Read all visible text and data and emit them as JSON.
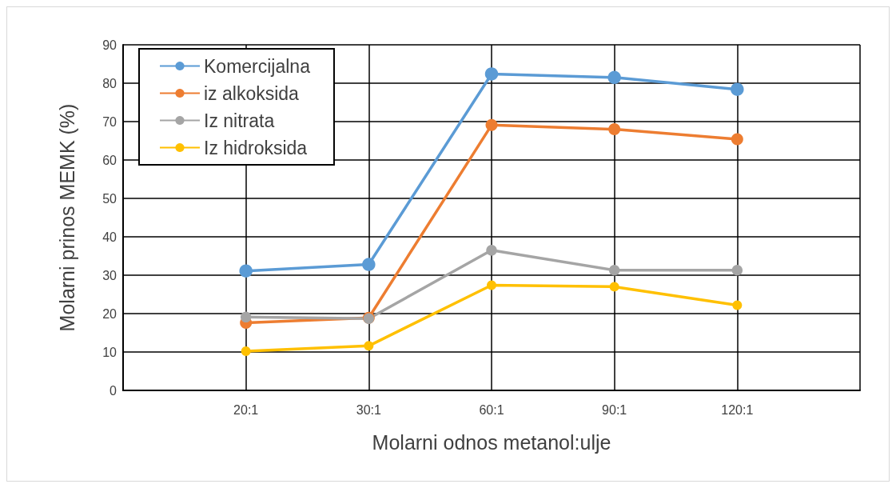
{
  "chart_data": {
    "type": "line",
    "xlabel": "Molarni odnos metanol:ulje",
    "ylabel": "Molarni prinos MEMK (%)",
    "categories": [
      null,
      "20:1",
      "30:1",
      "60:1",
      "90:1",
      "120:1",
      null
    ],
    "series": [
      {
        "name": "Komercijalna",
        "color": "#5b9bd5",
        "values": [
          null,
          31.1,
          32.8,
          82.4,
          81.5,
          78.4,
          null
        ]
      },
      {
        "name": "iz alkoksida",
        "color": "#ed7d31",
        "values": [
          null,
          17.6,
          18.9,
          69.1,
          68.0,
          65.4,
          null
        ]
      },
      {
        "name": "Iz nitrata",
        "color": "#a5a5a5",
        "values": [
          null,
          19.1,
          18.7,
          36.5,
          31.3,
          31.3,
          null
        ]
      },
      {
        "name": "Iz hidroksida",
        "color": "#ffc000",
        "values": [
          null,
          10.2,
          11.6,
          27.4,
          27.0,
          22.2,
          null
        ]
      }
    ],
    "ylim": [
      0,
      90
    ],
    "yticks": [
      0,
      10,
      20,
      30,
      40,
      50,
      60,
      70,
      80,
      90
    ],
    "grid": true,
    "legend": "top left",
    "marker": "circle",
    "line_style": "solid"
  }
}
